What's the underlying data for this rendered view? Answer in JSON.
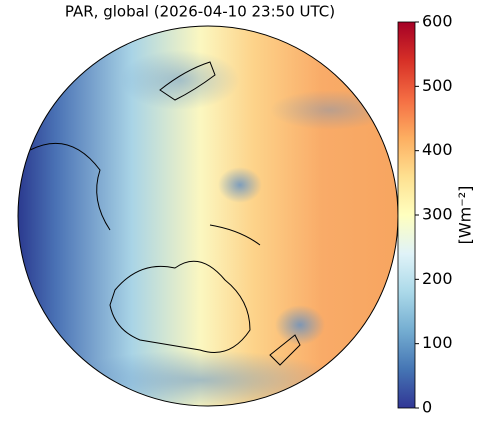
{
  "title": "PAR, global (2026-04-10 23:50 UTC)",
  "colorbar": {
    "label": "[Wm⁻²]",
    "lim": [
      0,
      600
    ],
    "ticks": [
      0,
      100,
      200,
      300,
      400,
      500,
      600
    ],
    "colormap": [
      "#313695",
      "#4575b4",
      "#74add1",
      "#abd9e9",
      "#e0f3f8",
      "#ffffbf",
      "#fee090",
      "#fdae61",
      "#f46d43",
      "#d73027",
      "#a50026"
    ]
  }
}
